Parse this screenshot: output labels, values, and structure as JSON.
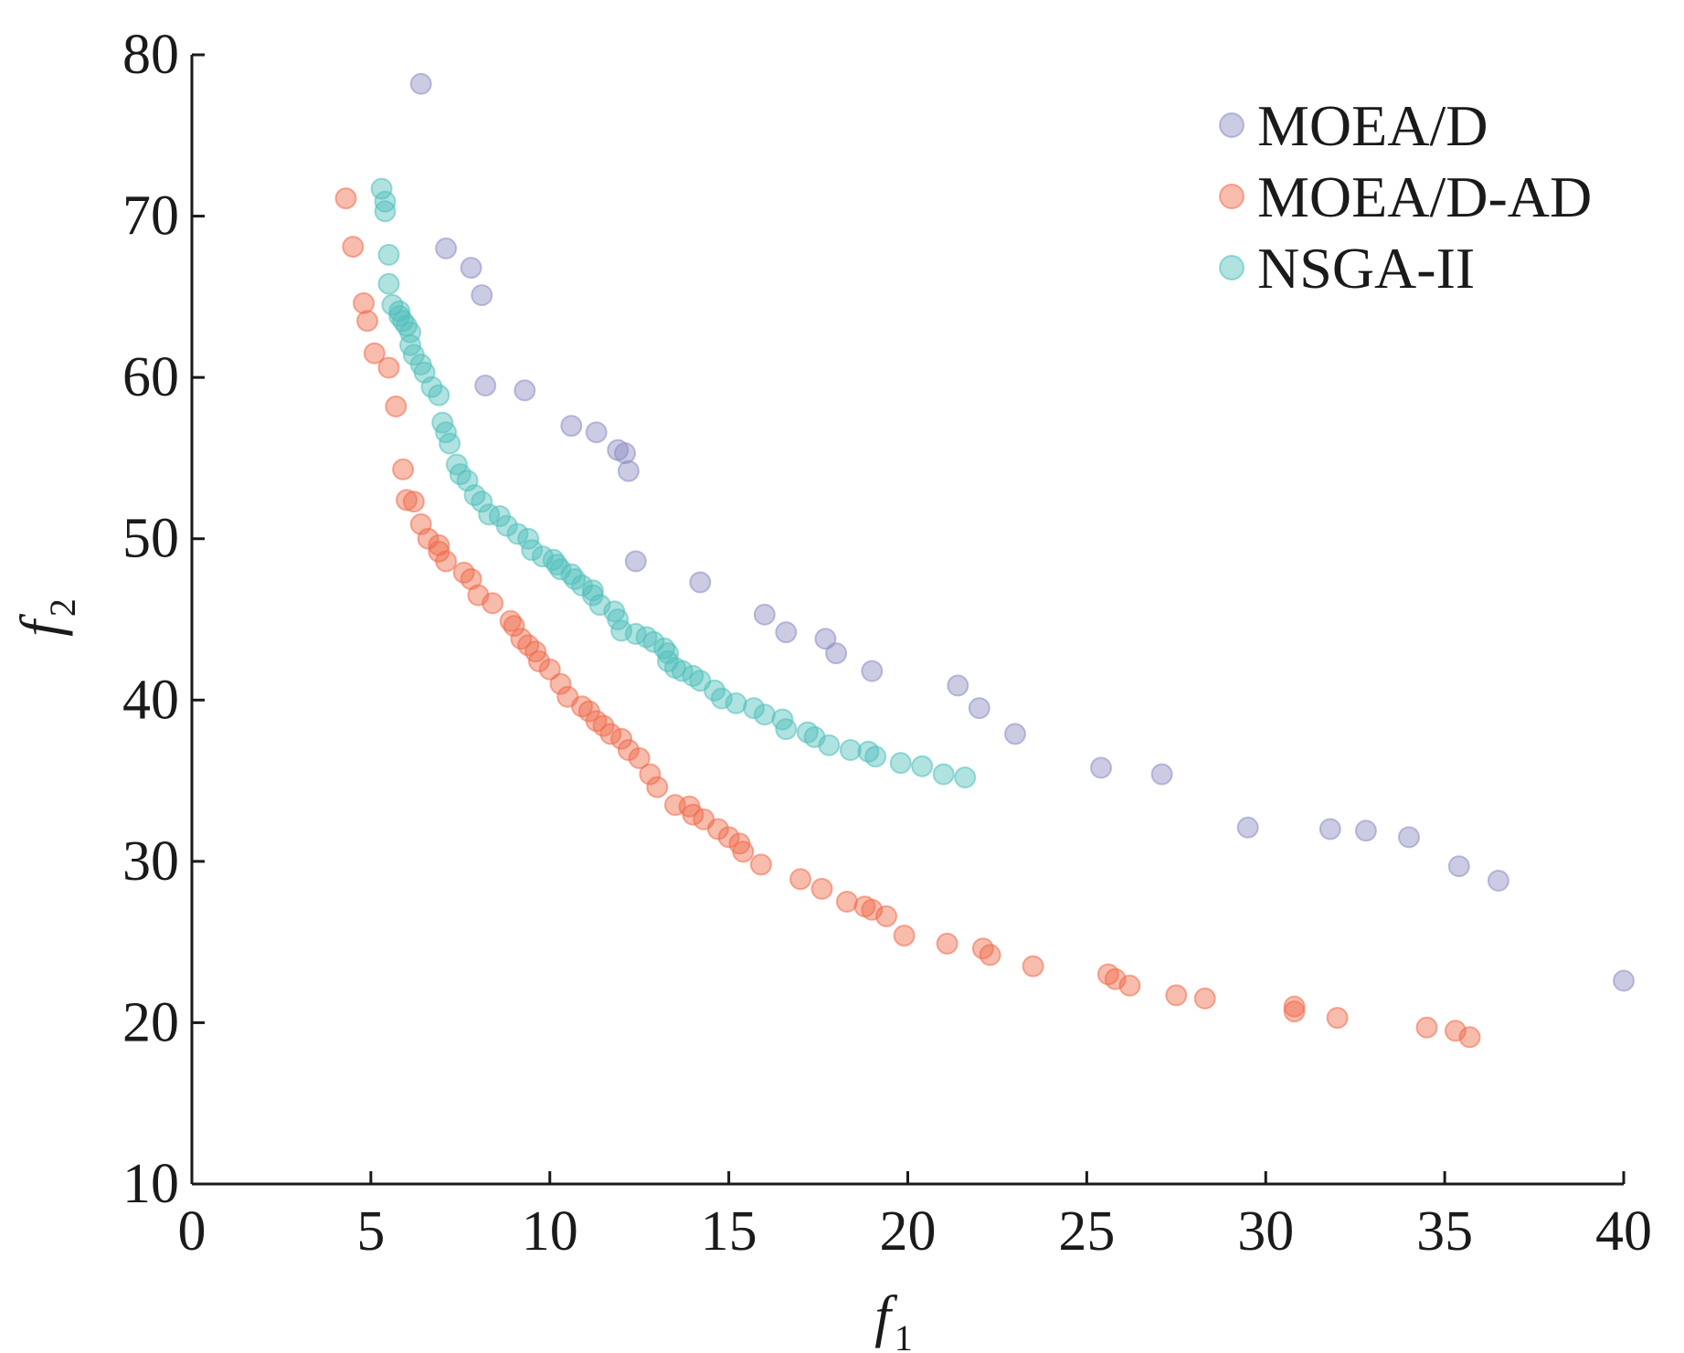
{
  "chart_data": {
    "type": "scatter",
    "title": "",
    "xlabel": "f",
    "xlabel_sub": "1",
    "ylabel": "f",
    "ylabel_sub": "2",
    "xlim": [
      0,
      40
    ],
    "ylim": [
      10,
      80
    ],
    "xticks": [
      0,
      5,
      10,
      15,
      20,
      25,
      30,
      35,
      40
    ],
    "yticks": [
      10,
      20,
      30,
      40,
      50,
      60,
      70,
      80
    ],
    "grid": false,
    "legend_position": "top-right",
    "series": [
      {
        "name": "MOEA/D",
        "color": "#8c8cc4",
        "points": [
          [
            6.4,
            78.2
          ],
          [
            7.1,
            68.0
          ],
          [
            7.8,
            66.8
          ],
          [
            8.1,
            65.1
          ],
          [
            8.2,
            59.5
          ],
          [
            9.3,
            59.2
          ],
          [
            10.6,
            57.0
          ],
          [
            11.3,
            56.6
          ],
          [
            11.9,
            55.5
          ],
          [
            12.1,
            55.3
          ],
          [
            12.2,
            54.2
          ],
          [
            12.4,
            48.6
          ],
          [
            14.2,
            47.3
          ],
          [
            16.0,
            45.3
          ],
          [
            16.6,
            44.2
          ],
          [
            17.7,
            43.8
          ],
          [
            18.0,
            42.9
          ],
          [
            19.0,
            41.8
          ],
          [
            21.4,
            40.9
          ],
          [
            22.0,
            39.5
          ],
          [
            23.0,
            37.9
          ],
          [
            25.4,
            35.8
          ],
          [
            27.1,
            35.4
          ],
          [
            29.5,
            32.1
          ],
          [
            31.8,
            32.0
          ],
          [
            32.8,
            31.9
          ],
          [
            34.0,
            31.5
          ],
          [
            35.4,
            29.7
          ],
          [
            36.5,
            28.8
          ],
          [
            40.0,
            22.6
          ]
        ]
      },
      {
        "name": "MOEA/D-AD",
        "color": "#f06a4a",
        "points": [
          [
            4.3,
            71.1
          ],
          [
            4.5,
            68.1
          ],
          [
            4.8,
            64.6
          ],
          [
            4.9,
            63.5
          ],
          [
            5.1,
            61.5
          ],
          [
            5.5,
            60.6
          ],
          [
            5.7,
            58.2
          ],
          [
            5.9,
            54.3
          ],
          [
            6.0,
            52.4
          ],
          [
            6.2,
            52.3
          ],
          [
            6.4,
            50.9
          ],
          [
            6.6,
            50.0
          ],
          [
            6.9,
            49.6
          ],
          [
            6.9,
            49.2
          ],
          [
            7.1,
            48.6
          ],
          [
            7.6,
            47.9
          ],
          [
            7.8,
            47.5
          ],
          [
            8.0,
            46.5
          ],
          [
            8.4,
            46.0
          ],
          [
            8.9,
            44.9
          ],
          [
            9.0,
            44.6
          ],
          [
            9.2,
            43.8
          ],
          [
            9.4,
            43.4
          ],
          [
            9.6,
            43.0
          ],
          [
            9.7,
            42.4
          ],
          [
            10.0,
            41.9
          ],
          [
            10.3,
            41.0
          ],
          [
            10.5,
            40.2
          ],
          [
            10.9,
            39.6
          ],
          [
            11.1,
            39.3
          ],
          [
            11.3,
            38.7
          ],
          [
            11.5,
            38.4
          ],
          [
            11.7,
            37.9
          ],
          [
            12.0,
            37.6
          ],
          [
            12.2,
            36.9
          ],
          [
            12.5,
            36.4
          ],
          [
            12.8,
            35.4
          ],
          [
            13.0,
            34.6
          ],
          [
            13.5,
            33.5
          ],
          [
            13.9,
            33.4
          ],
          [
            14.0,
            32.9
          ],
          [
            14.3,
            32.6
          ],
          [
            14.7,
            32.0
          ],
          [
            15.0,
            31.5
          ],
          [
            15.3,
            31.1
          ],
          [
            15.4,
            30.6
          ],
          [
            15.9,
            29.8
          ],
          [
            17.0,
            28.9
          ],
          [
            17.6,
            28.3
          ],
          [
            18.3,
            27.5
          ],
          [
            18.8,
            27.2
          ],
          [
            19.0,
            27.0
          ],
          [
            19.4,
            26.6
          ],
          [
            19.9,
            25.4
          ],
          [
            21.1,
            24.9
          ],
          [
            22.1,
            24.6
          ],
          [
            22.3,
            24.2
          ],
          [
            23.5,
            23.5
          ],
          [
            25.6,
            23.0
          ],
          [
            25.8,
            22.7
          ],
          [
            26.2,
            22.3
          ],
          [
            27.5,
            21.7
          ],
          [
            28.3,
            21.5
          ],
          [
            30.8,
            21.0
          ],
          [
            30.8,
            20.7
          ],
          [
            32.0,
            20.3
          ],
          [
            34.5,
            19.7
          ],
          [
            35.3,
            19.5
          ],
          [
            35.7,
            19.1
          ]
        ]
      },
      {
        "name": "NSGA-II",
        "color": "#4fbfbb",
        "points": [
          [
            5.3,
            71.7
          ],
          [
            5.4,
            70.9
          ],
          [
            5.4,
            70.3
          ],
          [
            5.5,
            67.6
          ],
          [
            5.5,
            65.8
          ],
          [
            5.6,
            64.5
          ],
          [
            5.8,
            64.1
          ],
          [
            5.8,
            63.8
          ],
          [
            5.9,
            63.5
          ],
          [
            6.0,
            63.2
          ],
          [
            6.1,
            62.8
          ],
          [
            6.1,
            62.0
          ],
          [
            6.2,
            61.4
          ],
          [
            6.4,
            60.8
          ],
          [
            6.5,
            60.3
          ],
          [
            6.7,
            59.4
          ],
          [
            6.9,
            58.9
          ],
          [
            7.0,
            57.2
          ],
          [
            7.1,
            56.6
          ],
          [
            7.2,
            55.9
          ],
          [
            7.4,
            54.6
          ],
          [
            7.5,
            54.0
          ],
          [
            7.7,
            53.6
          ],
          [
            7.9,
            52.7
          ],
          [
            8.1,
            52.3
          ],
          [
            8.3,
            51.5
          ],
          [
            8.6,
            51.4
          ],
          [
            8.8,
            50.8
          ],
          [
            9.1,
            50.3
          ],
          [
            9.4,
            50.0
          ],
          [
            9.5,
            49.3
          ],
          [
            9.8,
            48.9
          ],
          [
            10.1,
            48.7
          ],
          [
            10.2,
            48.4
          ],
          [
            10.3,
            48.1
          ],
          [
            10.6,
            47.8
          ],
          [
            10.7,
            47.5
          ],
          [
            10.9,
            47.1
          ],
          [
            11.2,
            46.8
          ],
          [
            11.2,
            46.5
          ],
          [
            11.4,
            45.9
          ],
          [
            11.8,
            45.5
          ],
          [
            11.9,
            45.0
          ],
          [
            12.0,
            44.3
          ],
          [
            12.4,
            44.1
          ],
          [
            12.7,
            43.9
          ],
          [
            12.9,
            43.6
          ],
          [
            13.2,
            43.2
          ],
          [
            13.3,
            42.9
          ],
          [
            13.3,
            42.4
          ],
          [
            13.5,
            42.0
          ],
          [
            13.7,
            41.8
          ],
          [
            14.0,
            41.5
          ],
          [
            14.2,
            41.2
          ],
          [
            14.6,
            40.6
          ],
          [
            14.8,
            40.1
          ],
          [
            15.2,
            39.8
          ],
          [
            15.7,
            39.5
          ],
          [
            16.0,
            39.1
          ],
          [
            16.5,
            38.8
          ],
          [
            16.6,
            38.2
          ],
          [
            17.2,
            38.0
          ],
          [
            17.4,
            37.7
          ],
          [
            17.8,
            37.2
          ],
          [
            18.4,
            36.9
          ],
          [
            18.9,
            36.8
          ],
          [
            19.1,
            36.5
          ],
          [
            19.8,
            36.1
          ],
          [
            20.4,
            35.9
          ],
          [
            21.0,
            35.4
          ],
          [
            21.6,
            35.2
          ]
        ]
      }
    ]
  }
}
